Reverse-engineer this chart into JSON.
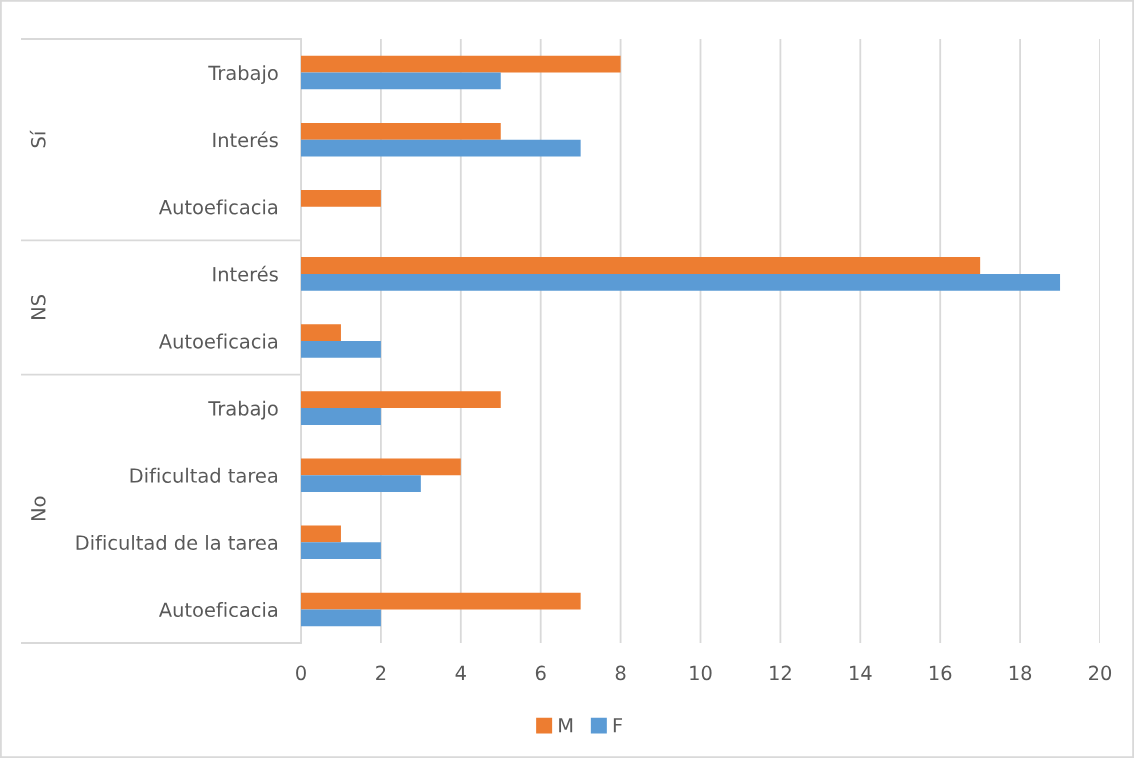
{
  "chart_data": {
    "type": "bar",
    "orientation": "horizontal",
    "categories": [
      "Trabajo",
      "Interés",
      "Autoeficacia",
      "Interés",
      "Autoeficacia",
      "Trabajo",
      "Dificultad tarea",
      "Dificultad de la tarea",
      "Autoeficacia"
    ],
    "series": [
      {
        "name": "M",
        "color": "#ed7d31",
        "values": [
          8,
          5,
          2,
          17,
          1,
          5,
          4,
          1,
          7
        ]
      },
      {
        "name": "F",
        "color": "#5b9bd5",
        "values": [
          5,
          7,
          null,
          19,
          2,
          2,
          3,
          2,
          2
        ]
      }
    ],
    "xlim": [
      0,
      20
    ],
    "xticks": [
      0,
      2,
      4,
      6,
      8,
      10,
      12,
      14,
      16,
      18,
      20
    ],
    "grid": "x",
    "legend": "bottom",
    "annotations": [
      "Sí",
      "NS",
      "No"
    ]
  }
}
